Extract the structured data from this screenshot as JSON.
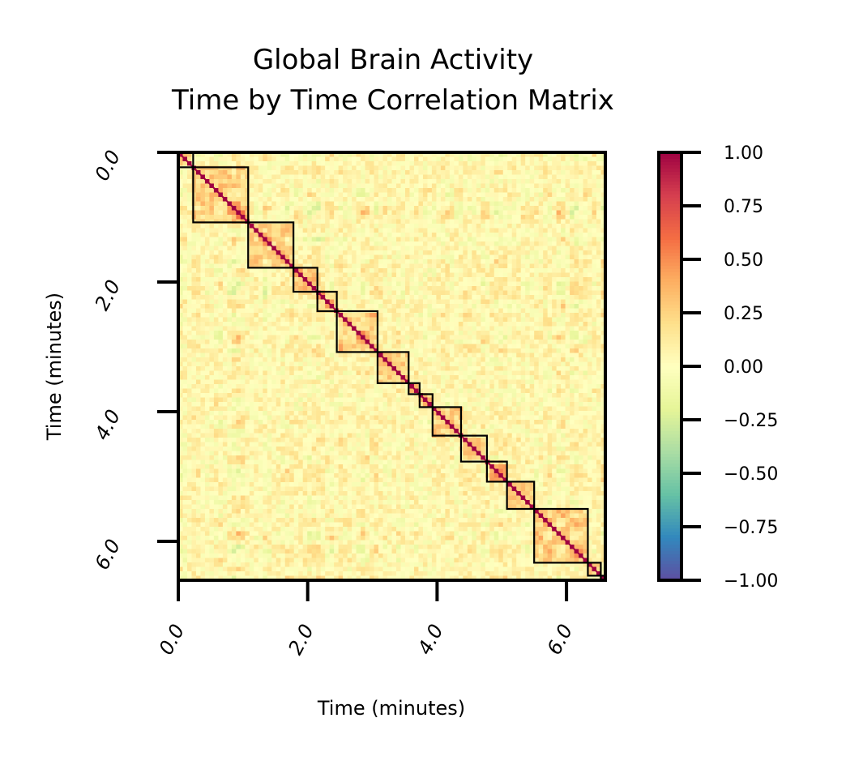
{
  "chart_data": {
    "type": "heatmap",
    "title_lines": [
      "Global Brain Activity",
      "Time by Time Correlation Matrix"
    ],
    "xlabel": "Time (minutes)",
    "ylabel": "Time (minutes)",
    "x_range_minutes": [
      0,
      6.6
    ],
    "y_range_minutes": [
      0,
      6.6
    ],
    "x_ticks": [
      {
        "value": 0,
        "label": "0.0"
      },
      {
        "value": 2,
        "label": "2.0"
      },
      {
        "value": 4,
        "label": "4.0"
      },
      {
        "value": 6,
        "label": "6.0"
      }
    ],
    "y_ticks": [
      {
        "value": 0,
        "label": "0.0"
      },
      {
        "value": 2,
        "label": "2.0"
      },
      {
        "value": 4,
        "label": "4.0"
      },
      {
        "value": 6,
        "label": "6.0"
      }
    ],
    "diagonal_value": 1.0,
    "typical_offdiagonal_range": [
      -0.6,
      0.6
    ],
    "segments_minutes": [
      [
        0,
        0.23
      ],
      [
        0.23,
        1.08
      ],
      [
        1.08,
        1.78
      ],
      [
        1.78,
        2.15
      ],
      [
        2.15,
        2.45
      ],
      [
        2.45,
        3.08
      ],
      [
        3.08,
        3.56
      ],
      [
        3.56,
        3.73
      ],
      [
        3.73,
        3.93
      ],
      [
        3.93,
        4.37
      ],
      [
        4.37,
        4.77
      ],
      [
        4.77,
        5.08
      ],
      [
        5.08,
        5.5
      ],
      [
        5.5,
        6.33
      ],
      [
        6.33,
        6.53
      ],
      [
        6.53,
        6.6
      ]
    ],
    "colorbar": {
      "colormap": "Spectral_r",
      "vmin": -1.0,
      "vmax": 1.0,
      "ticks": [
        {
          "value": 1.0,
          "label": "1.00"
        },
        {
          "value": 0.75,
          "label": "0.75"
        },
        {
          "value": 0.5,
          "label": "0.50"
        },
        {
          "value": 0.25,
          "label": "0.25"
        },
        {
          "value": 0.0,
          "label": "0.00"
        },
        {
          "value": -0.25,
          "label": "−0.25"
        },
        {
          "value": -0.5,
          "label": "−0.50"
        },
        {
          "value": -0.75,
          "label": "−0.75"
        },
        {
          "value": -1.0,
          "label": "−1.00"
        }
      ]
    },
    "grid": false,
    "legend": "none"
  }
}
